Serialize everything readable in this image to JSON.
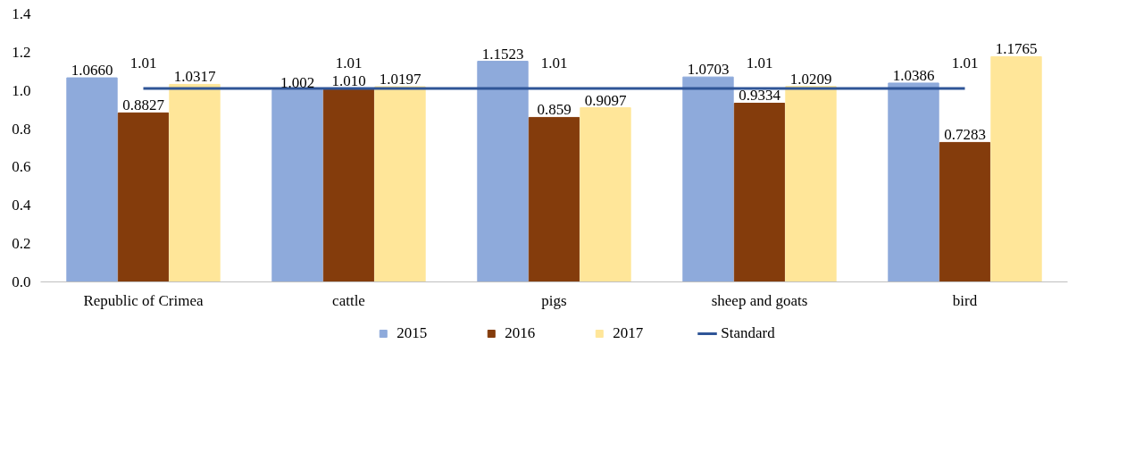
{
  "chart_data": {
    "type": "bar",
    "categories": [
      "Republic of Crimea",
      "cattle",
      "pigs",
      "sheep and goats",
      "bird"
    ],
    "series": [
      {
        "name": "2015",
        "color": "#8eaadb",
        "values": [
          1.066,
          1.002,
          1.1523,
          1.0703,
          1.0386
        ],
        "value_labels": [
          "1.0660",
          "1.002",
          "1.1523",
          "1.0703",
          "1.0386"
        ]
      },
      {
        "name": "2016",
        "color": "#843c0c",
        "values": [
          0.8827,
          1.01,
          0.859,
          0.9334,
          0.7283
        ],
        "value_labels": [
          "0.8827",
          "1.010",
          "0.859",
          "0.9334",
          "0.7283"
        ]
      },
      {
        "name": "2017",
        "color": "#ffe699",
        "values": [
          1.0317,
          1.0197,
          0.9097,
          1.0209,
          1.1765
        ],
        "value_labels": [
          "1.0317",
          "1.0197",
          "0.9097",
          "1.0209",
          "1.1765"
        ]
      },
      {
        "name": "Standard",
        "type": "line",
        "color": "#2f5597",
        "values": [
          1.01,
          1.01,
          1.01,
          1.01,
          1.01
        ],
        "value_labels": [
          "1.01",
          "1.01",
          "1.01",
          "1.01",
          "1.01"
        ]
      }
    ],
    "ylim": [
      0,
      1.4
    ],
    "yticks": [
      {
        "value": 0,
        "label": "0.0"
      },
      {
        "value": 0.2,
        "label": "0.2"
      },
      {
        "value": 0.4,
        "label": "0.4"
      },
      {
        "value": 0.6,
        "label": "0.6"
      },
      {
        "value": 0.8,
        "label": "0.8"
      },
      {
        "value": 1.0,
        "label": "1.0"
      },
      {
        "value": 1.2,
        "label": "1.2"
      },
      {
        "value": 1.4,
        "label": "1.4"
      }
    ],
    "grid": false,
    "legend": "bottom"
  }
}
